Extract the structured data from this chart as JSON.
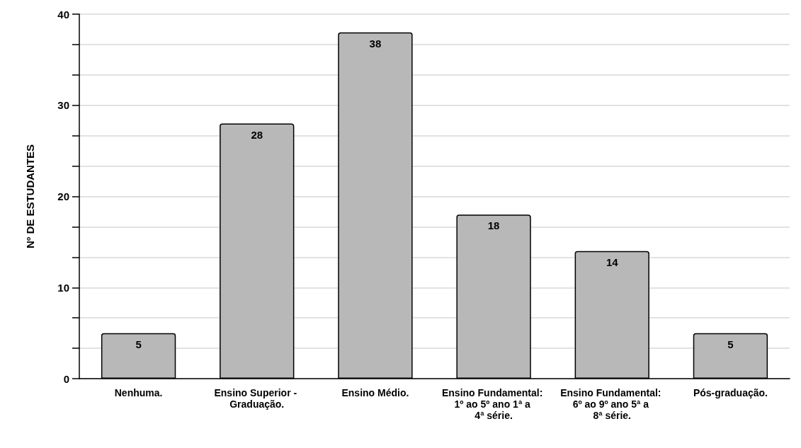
{
  "chart_data": {
    "type": "bar",
    "ylabel": "Nº DE ESTUDANTES",
    "categories": [
      "Nenhuma.",
      "Ensino Superior - Graduação.",
      "Ensino Médio.",
      "Ensino Fundamental: 1º ao 5º ano 1ª a 4ª série.",
      "Ensino Fundamental: 6º ao 9º ano 5ª a 8ª série.",
      "Pós-graduação."
    ],
    "values": [
      5,
      28,
      38,
      18,
      14,
      5
    ],
    "color": "#b8b8b8",
    "ylim": [
      0,
      40
    ],
    "yticks": [
      0,
      {
        "value": 3.33,
        "label": null
      },
      {
        "value": 6.67,
        "label": null
      },
      10,
      {
        "value": 13.33,
        "label": null
      },
      {
        "value": 16.67,
        "label": null
      },
      20,
      {
        "value": 23.33,
        "label": null
      },
      {
        "value": 26.67,
        "label": null
      },
      30,
      {
        "value": 33.33,
        "label": null
      },
      {
        "value": 36.67,
        "label": null
      },
      40
    ],
    "grid": "y",
    "data_labels": true
  }
}
